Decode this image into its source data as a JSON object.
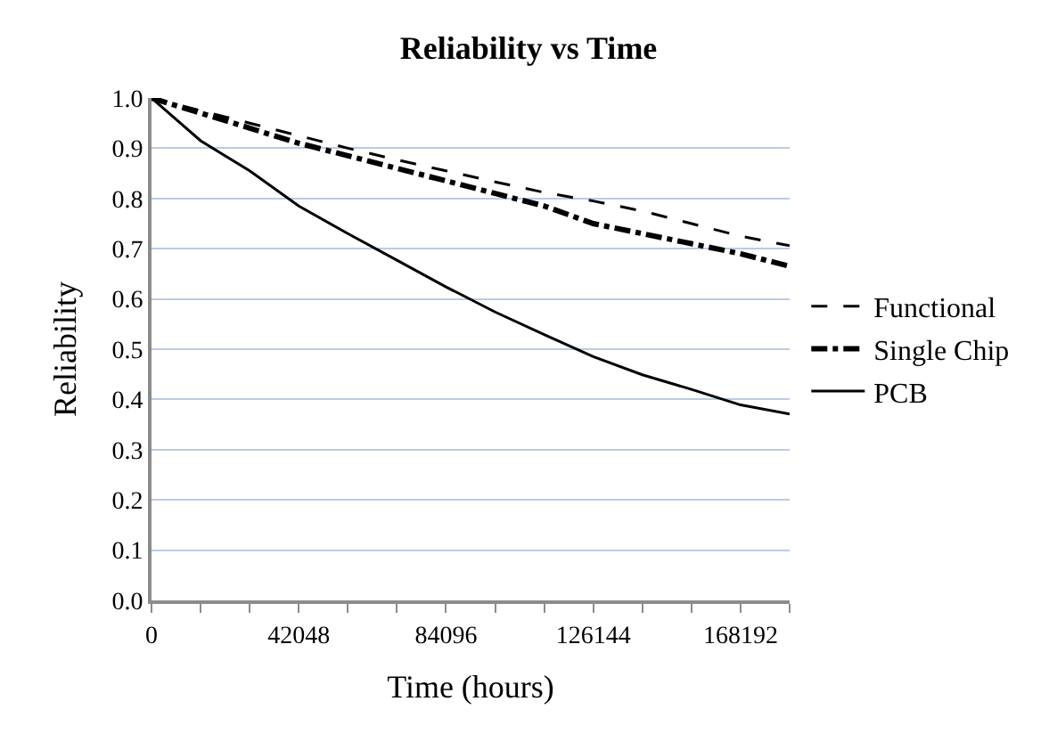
{
  "chart_data": {
    "type": "line",
    "title": "Reliability vs Time",
    "xlabel": "Time (hours)",
    "ylabel": "Reliability",
    "x": [
      0,
      14016,
      28032,
      42048,
      56064,
      70080,
      84096,
      98112,
      112128,
      126144,
      140160,
      154176,
      168192,
      182208
    ],
    "series": [
      {
        "name": "Functional",
        "color": "#000000",
        "line_style": "dashed",
        "values": [
          1.0,
          0.975,
          0.95,
          0.925,
          0.9,
          0.877,
          0.855,
          0.833,
          0.812,
          0.795,
          0.775,
          0.75,
          0.725,
          0.706
        ]
      },
      {
        "name": "Single Chip",
        "color": "#000000",
        "line_style": "dashdot",
        "values": [
          1.0,
          0.97,
          0.94,
          0.91,
          0.885,
          0.86,
          0.835,
          0.81,
          0.785,
          0.75,
          0.73,
          0.71,
          0.69,
          0.665
        ]
      },
      {
        "name": "PCB",
        "color": "#000000",
        "line_style": "solid",
        "values": [
          1.0,
          0.915,
          0.855,
          0.785,
          0.73,
          0.677,
          0.624,
          0.574,
          0.529,
          0.485,
          0.449,
          0.42,
          0.389,
          0.371
        ]
      }
    ],
    "xlim": [
      0,
      182208
    ],
    "xticks": [
      0,
      {
        "value": 14016,
        "label": null
      },
      {
        "value": 28032,
        "label": null
      },
      42048,
      {
        "value": 56064,
        "label": null
      },
      {
        "value": 70080,
        "label": null
      },
      84096,
      {
        "value": 98112,
        "label": null
      },
      {
        "value": 112128,
        "label": null
      },
      126144,
      {
        "value": 140160,
        "label": null
      },
      {
        "value": 154176,
        "label": null
      },
      168192,
      {
        "value": 182208,
        "label": null
      }
    ],
    "ylim": [
      0,
      1.0
    ],
    "yticks": [
      {
        "value": 0,
        "label": "0.0"
      },
      0.1,
      0.2,
      0.3,
      0.4,
      0.5,
      0.6,
      0.7,
      0.8,
      0.9,
      {
        "value": 1.0,
        "label": "1.0"
      }
    ],
    "grid": "y",
    "legend": "right",
    "marker": "none"
  }
}
